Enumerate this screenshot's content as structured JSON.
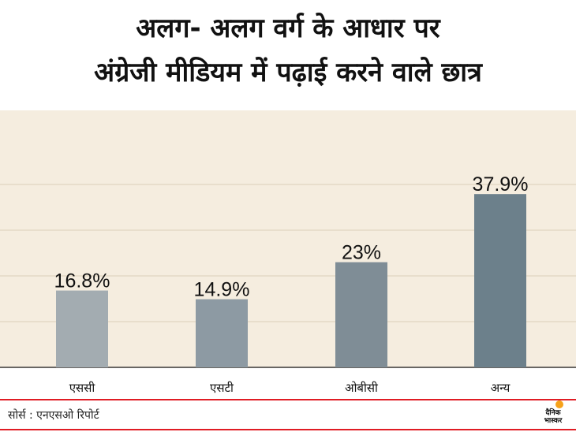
{
  "title_line1": "अलग- अलग वर्ग के आधार पर",
  "title_line2": "अंग्रेजी मीडियम में पढ़ाई करने वाले छात्र",
  "source": "सोर्स : एनएसओ रिपोर्ट",
  "logo": {
    "line1": "दैनिक",
    "line2": "भास्कर",
    "accent": "#f6a21a"
  },
  "colors": {
    "background": "#ffffff",
    "panel": "#f5eddf",
    "gridline": "#dccfb8",
    "footer_line": "#e01c24",
    "bars": [
      "#a3acb1",
      "#8d9aa3",
      "#7f8d96",
      "#6c808b"
    ]
  },
  "chart_data": {
    "type": "bar",
    "categories": [
      "एससी",
      "एसटी",
      "ओबीसी",
      "अन्य"
    ],
    "values": [
      16.8,
      14.9,
      23,
      37.9
    ],
    "value_labels": [
      "16.8%",
      "14.9%",
      "23%",
      "37.9%"
    ],
    "title": "अलग- अलग वर्ग के आधार पर अंग्रेजी मीडियम में पढ़ाई करने वाले छात्र",
    "xlabel": "",
    "ylabel": "",
    "ylim": [
      0,
      50
    ],
    "grid": true,
    "legend": "none"
  }
}
